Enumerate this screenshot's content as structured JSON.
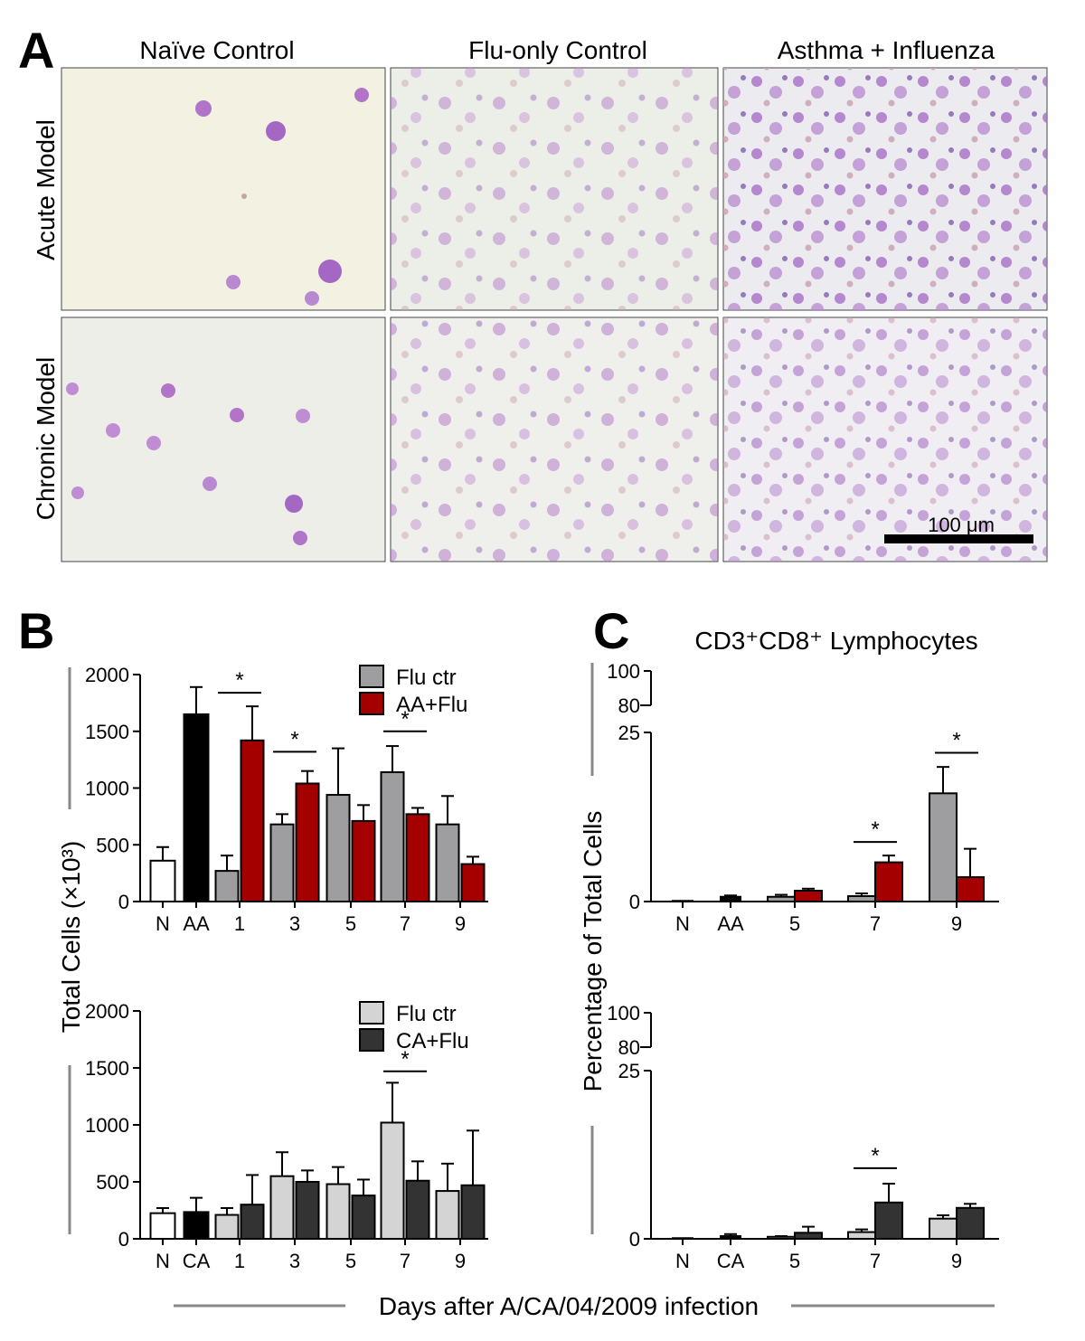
{
  "panel_a": {
    "letter": "A",
    "columns": [
      "Naïve Control",
      "Flu-only Control",
      "Asthma + Influenza"
    ],
    "rows": [
      "Acute  Model",
      "Chronic Model"
    ],
    "scale_bar": "100 μm"
  },
  "panel_b": {
    "letter": "B",
    "ylabel": "Total Cells  (×10³)"
  },
  "panel_c": {
    "letter": "C",
    "title": "CD3⁺CD8⁺ Lymphocytes",
    "ylabel": "Percentage of Total  Cells"
  },
  "shared_xlabel": "Days after A/CA/04/2009 infection",
  "colors": {
    "flu_ctr_acute": "#9e9ea0",
    "aa_flu": "#a50000",
    "flu_ctr_chronic": "#d4d4d4",
    "ca_flu": "#333333",
    "naive": "#ffffff",
    "asthma_only": "#000000"
  },
  "chart_data": [
    {
      "id": "b_acute",
      "type": "bar",
      "ylim": [
        0,
        2000
      ],
      "yticks": [
        0,
        500,
        1000,
        1500,
        2000
      ],
      "ytick_labels": [
        "0",
        "500",
        "1000",
        "1500",
        "2000"
      ],
      "xlabels": [
        "N",
        "AA",
        "1",
        "3",
        "5",
        "7",
        "9"
      ],
      "legend": [
        {
          "name": "Flu ctr",
          "color": "#9e9ea0"
        },
        {
          "name": "AA+Flu",
          "color": "#a50000"
        }
      ],
      "legend_position": "top-right",
      "bars": [
        {
          "group": "N",
          "value": 360,
          "err": 120,
          "color": "#ffffff"
        },
        {
          "group": "AA",
          "value": 1650,
          "err": 240,
          "color": "#000000"
        },
        {
          "group": "1",
          "series": "Flu ctr",
          "value": 270,
          "err": 135,
          "color": "#9e9ea0"
        },
        {
          "group": "1",
          "series": "AA+Flu",
          "value": 1420,
          "err": 300,
          "color": "#a50000"
        },
        {
          "group": "3",
          "series": "Flu ctr",
          "value": 680,
          "err": 90,
          "color": "#9e9ea0"
        },
        {
          "group": "3",
          "series": "AA+Flu",
          "value": 1040,
          "err": 110,
          "color": "#a50000"
        },
        {
          "group": "5",
          "series": "Flu ctr",
          "value": 940,
          "err": 410,
          "color": "#9e9ea0"
        },
        {
          "group": "5",
          "series": "AA+Flu",
          "value": 710,
          "err": 140,
          "color": "#a50000"
        },
        {
          "group": "7",
          "series": "Flu ctr",
          "value": 1140,
          "err": 230,
          "color": "#9e9ea0"
        },
        {
          "group": "7",
          "series": "AA+Flu",
          "value": 770,
          "err": 55,
          "color": "#a50000"
        },
        {
          "group": "9",
          "series": "Flu ctr",
          "value": 680,
          "err": 250,
          "color": "#9e9ea0"
        },
        {
          "group": "9",
          "series": "AA+Flu",
          "value": 330,
          "err": 65,
          "color": "#a50000"
        }
      ],
      "significance": [
        {
          "group": "1",
          "y": 1840,
          "label": "*"
        },
        {
          "group": "3",
          "y": 1320,
          "label": "*"
        },
        {
          "group": "7",
          "y": 1500,
          "label": "*"
        }
      ]
    },
    {
      "id": "b_chronic",
      "type": "bar",
      "ylim": [
        0,
        2000
      ],
      "yticks": [
        0,
        500,
        1000,
        1500,
        2000
      ],
      "ytick_labels": [
        "0",
        "500",
        "1000",
        "1500",
        "2000"
      ],
      "xlabels": [
        "N",
        "CA",
        "1",
        "3",
        "5",
        "7",
        "9"
      ],
      "legend": [
        {
          "name": "Flu ctr",
          "color": "#d4d4d4"
        },
        {
          "name": "CA+Flu",
          "color": "#333333"
        }
      ],
      "legend_position": "top-right",
      "bars": [
        {
          "group": "N",
          "value": 225,
          "err": 45,
          "color": "#ffffff"
        },
        {
          "group": "CA",
          "value": 235,
          "err": 125,
          "color": "#000000"
        },
        {
          "group": "1",
          "series": "Flu ctr",
          "value": 210,
          "err": 60,
          "color": "#d4d4d4"
        },
        {
          "group": "1",
          "series": "CA+Flu",
          "value": 300,
          "err": 260,
          "color": "#333333"
        },
        {
          "group": "3",
          "series": "Flu ctr",
          "value": 550,
          "err": 210,
          "color": "#d4d4d4"
        },
        {
          "group": "3",
          "series": "CA+Flu",
          "value": 500,
          "err": 100,
          "color": "#333333"
        },
        {
          "group": "5",
          "series": "Flu ctr",
          "value": 480,
          "err": 150,
          "color": "#d4d4d4"
        },
        {
          "group": "5",
          "series": "CA+Flu",
          "value": 380,
          "err": 140,
          "color": "#333333"
        },
        {
          "group": "7",
          "series": "Flu ctr",
          "value": 1020,
          "err": 350,
          "color": "#d4d4d4"
        },
        {
          "group": "7",
          "series": "CA+Flu",
          "value": 510,
          "err": 170,
          "color": "#333333"
        },
        {
          "group": "9",
          "series": "Flu ctr",
          "value": 420,
          "err": 240,
          "color": "#d4d4d4"
        },
        {
          "group": "9",
          "series": "CA+Flu",
          "value": 470,
          "err": 480,
          "color": "#333333"
        }
      ],
      "significance": [
        {
          "group": "7",
          "y": 1470,
          "label": "*"
        }
      ]
    },
    {
      "id": "c_acute",
      "type": "bar",
      "axis_break": true,
      "lower_ylim": [
        0,
        25
      ],
      "upper_ylim": [
        80,
        100
      ],
      "yticks": [
        0,
        25,
        80,
        100
      ],
      "ytick_labels": [
        "0",
        "25",
        "80",
        "100"
      ],
      "xlabels": [
        "N",
        "AA",
        "5",
        "7",
        "9"
      ],
      "bars": [
        {
          "group": "N",
          "value": 0.1,
          "err": 0,
          "color": "#ffffff"
        },
        {
          "group": "AA",
          "value": 0.7,
          "err": 0.2,
          "color": "#000000"
        },
        {
          "group": "5",
          "series": "Flu ctr",
          "value": 0.7,
          "err": 0.3,
          "color": "#9e9ea0"
        },
        {
          "group": "5",
          "series": "AA+Flu",
          "value": 1.6,
          "err": 0.3,
          "color": "#a50000"
        },
        {
          "group": "7",
          "series": "Flu ctr",
          "value": 0.8,
          "err": 0.4,
          "color": "#9e9ea0"
        },
        {
          "group": "7",
          "series": "AA+Flu",
          "value": 5.8,
          "err": 1.0,
          "color": "#a50000"
        },
        {
          "group": "9",
          "series": "Flu ctr",
          "value": 16,
          "err": 3.9,
          "color": "#9e9ea0"
        },
        {
          "group": "9",
          "series": "AA+Flu",
          "value": 3.6,
          "err": 4.2,
          "color": "#a50000"
        }
      ],
      "significance": [
        {
          "group": "7",
          "y": 8.8,
          "label": "*"
        },
        {
          "group": "9",
          "y": 22,
          "label": "*"
        }
      ]
    },
    {
      "id": "c_chronic",
      "type": "bar",
      "axis_break": true,
      "lower_ylim": [
        0,
        25
      ],
      "upper_ylim": [
        80,
        100
      ],
      "yticks": [
        0,
        25,
        80,
        100
      ],
      "ytick_labels": [
        "0",
        "25",
        "80",
        "100"
      ],
      "xlabels": [
        "N",
        "CA",
        "5",
        "7",
        "9"
      ],
      "bars": [
        {
          "group": "N",
          "value": 0.1,
          "err": 0,
          "color": "#ffffff"
        },
        {
          "group": "CA",
          "value": 0.4,
          "err": 0.3,
          "color": "#000000"
        },
        {
          "group": "5",
          "series": "Flu ctr",
          "value": 0.3,
          "err": 0.1,
          "color": "#d4d4d4"
        },
        {
          "group": "5",
          "series": "CA+Flu",
          "value": 0.9,
          "err": 0.9,
          "color": "#333333"
        },
        {
          "group": "7",
          "series": "Flu ctr",
          "value": 1.0,
          "err": 0.4,
          "color": "#d4d4d4"
        },
        {
          "group": "7",
          "series": "CA+Flu",
          "value": 5.4,
          "err": 2.8,
          "color": "#333333"
        },
        {
          "group": "9",
          "series": "Flu ctr",
          "value": 3.0,
          "err": 0.5,
          "color": "#d4d4d4"
        },
        {
          "group": "9",
          "series": "CA+Flu",
          "value": 4.6,
          "err": 0.6,
          "color": "#333333"
        }
      ],
      "significance": [
        {
          "group": "7",
          "y": 10.5,
          "label": "*"
        }
      ]
    }
  ]
}
